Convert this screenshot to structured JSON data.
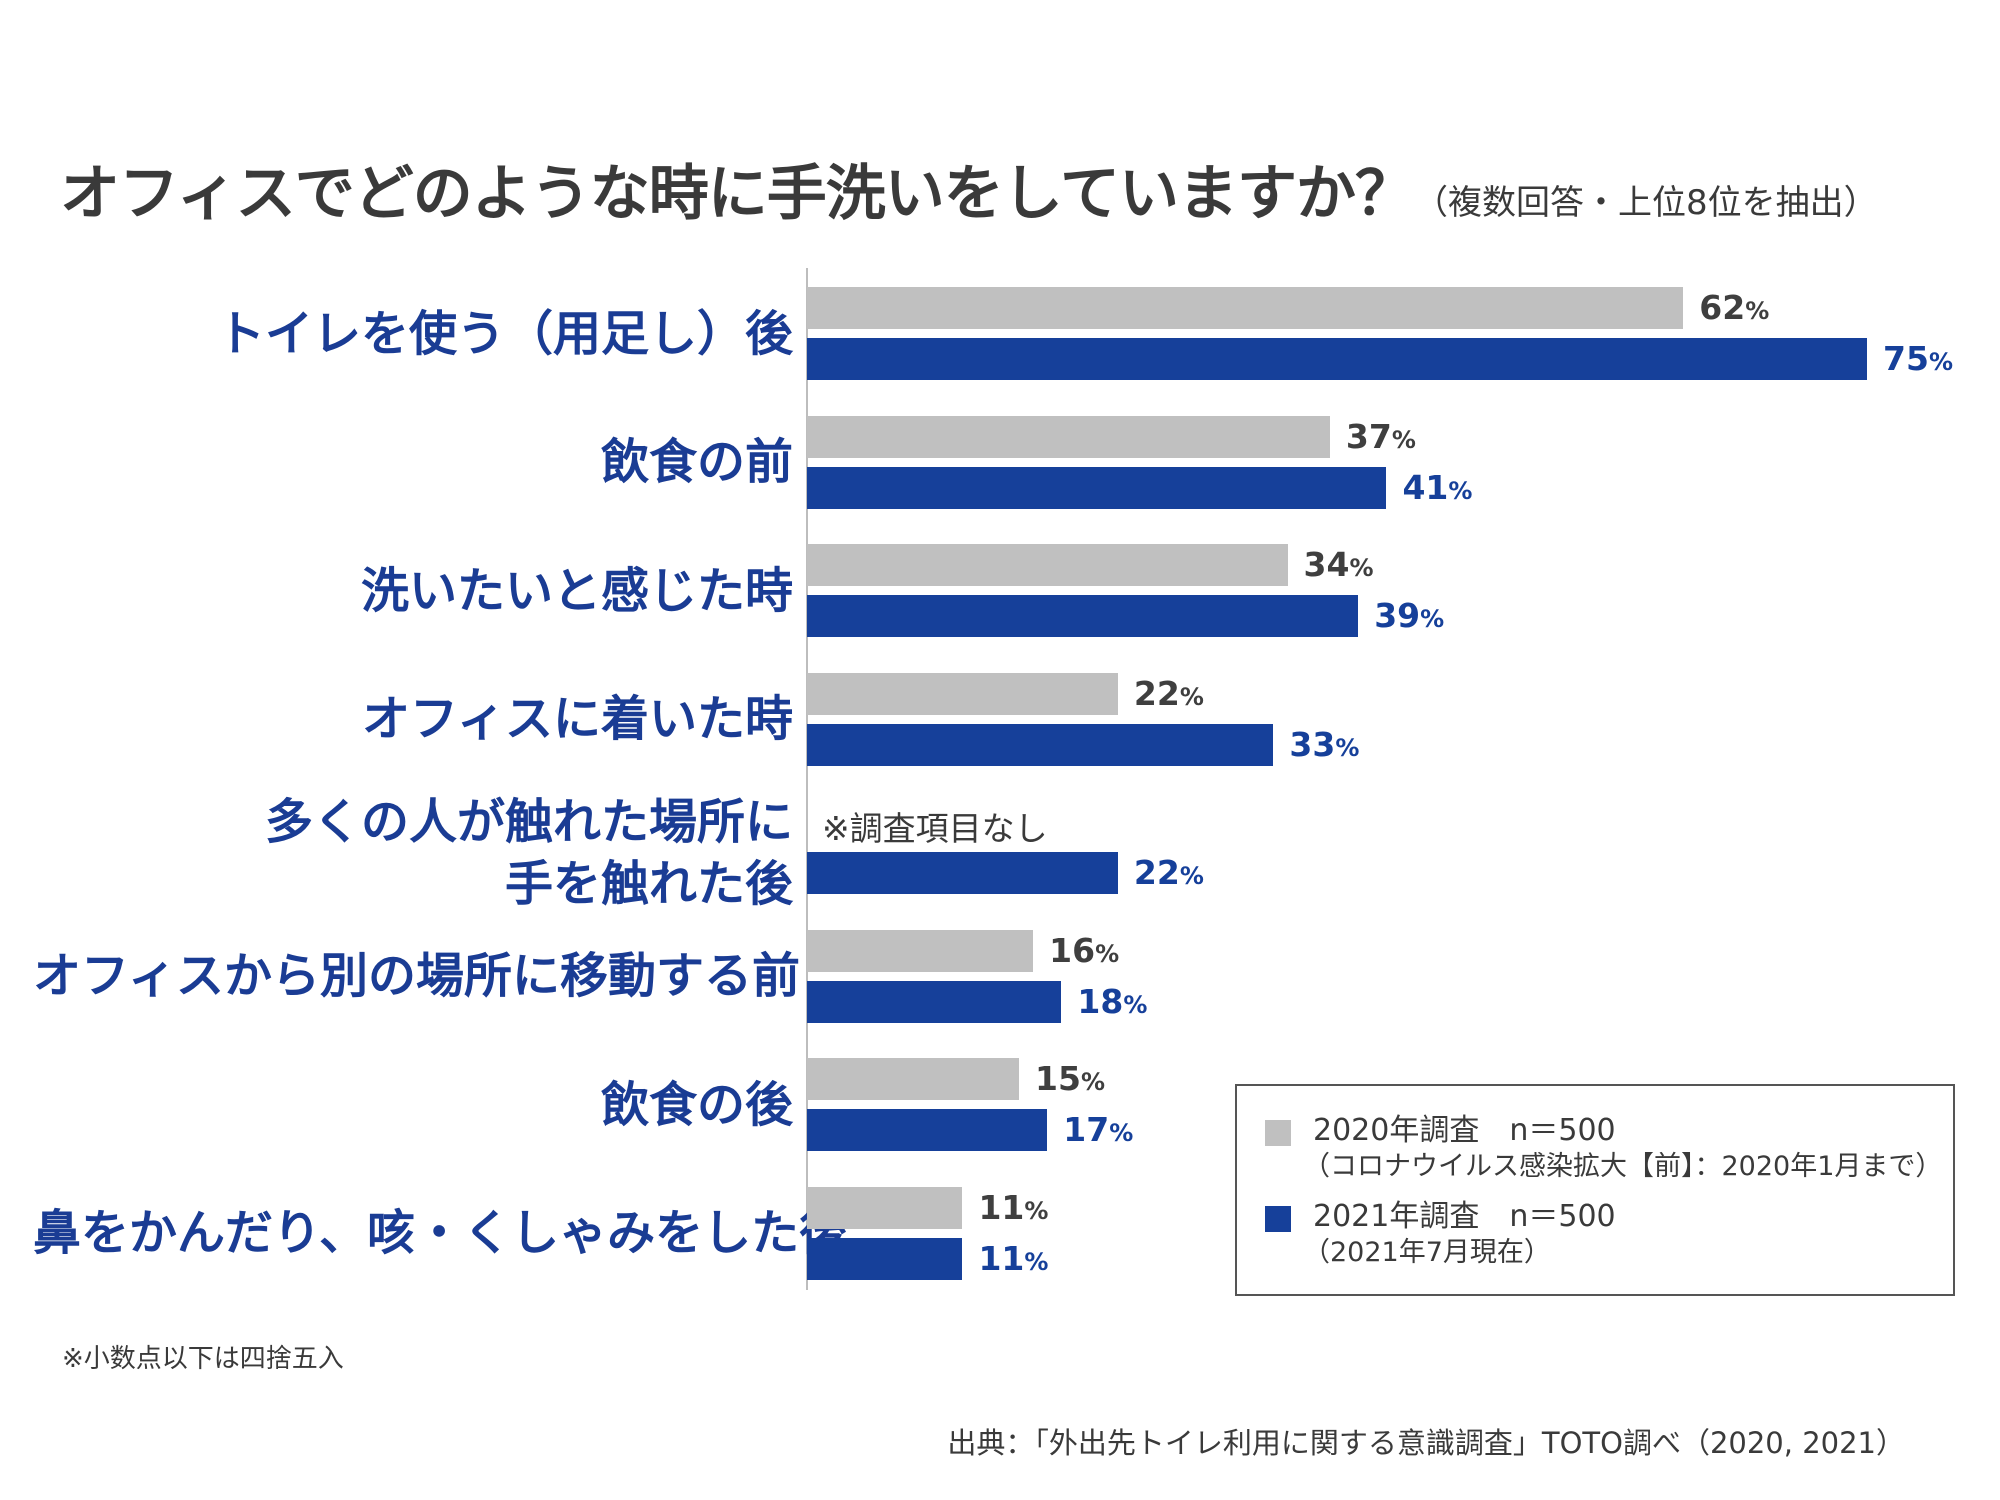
{
  "title": "オフィスでどのような時に手洗いをしていますか？",
  "subtitle": "（複数回答・上位8位を抽出）",
  "colors": {
    "prev": "#c0c0c0",
    "curr": "#16409a",
    "label": "#1a3c94"
  },
  "chart_data": {
    "type": "bar",
    "orientation": "horizontal",
    "categories": [
      "トイレを使う（用足し）後",
      "飲食の前",
      "洗いたいと感じた時",
      "オフィスに着いた時",
      "多くの人が触れた場所に手を触れた後",
      "オフィスから別の場所に移動する前",
      "飲食の後",
      "鼻をかんだり、咳・くしゃみをした後"
    ],
    "series": [
      {
        "name": "2020年調査　n＝500",
        "values": [
          62,
          37,
          34,
          22,
          null,
          16,
          15,
          11
        ]
      },
      {
        "name": "2021年調査　n＝500",
        "values": [
          75,
          41,
          39,
          33,
          22,
          18,
          17,
          11
        ]
      }
    ],
    "unit": "%",
    "missing_note": "※調査項目なし",
    "xlim": [
      0,
      78
    ],
    "grid": false,
    "legend_position": "bottom-right"
  },
  "legend": {
    "prev_label": "2020年調査　n＝500",
    "prev_sub": "（コロナウイルス感染拡大【前】：2020年1月まで）",
    "curr_label": "2021年調査　n＝500",
    "curr_sub": "（2021年7月現在）"
  },
  "footnote": "※小数点以下は四捨五入",
  "source": "出典：「外出先トイレ利用に関する意識調査」TOTO調べ（2020, 2021）"
}
